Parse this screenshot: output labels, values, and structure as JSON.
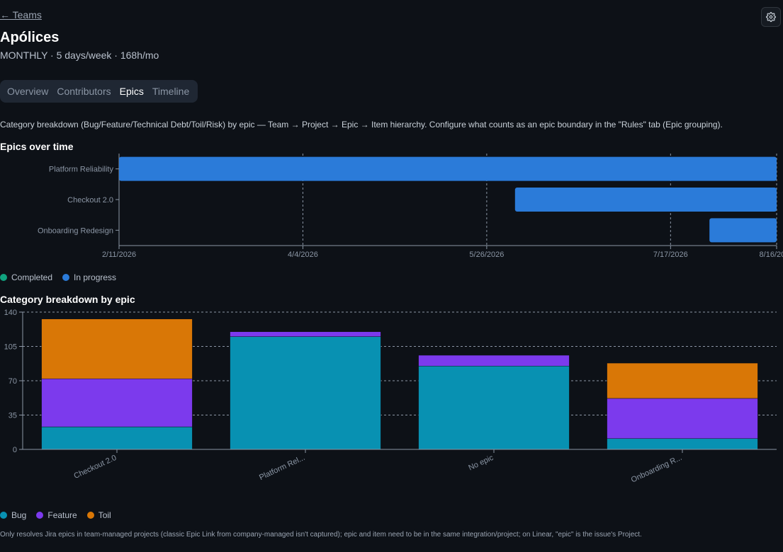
{
  "nav": {
    "back_label": "← Teams"
  },
  "header": {
    "title": "Apólices",
    "subtitle": "MONTHLY · 5 days/week · 168h/mo"
  },
  "tabs": [
    {
      "label": "Overview",
      "active": false
    },
    {
      "label": "Contributors",
      "active": false
    },
    {
      "label": "Epics",
      "active": true
    },
    {
      "label": "Timeline",
      "active": false
    }
  ],
  "description": "Category breakdown (Bug/Feature/Technical Debt/Toil/Risk) by epic — Team → Project → Epic → Item hierarchy. Configure what counts as an epic boundary in the \"Rules\" tab (Epic grouping).",
  "timeline_section": {
    "title": "Epics over time"
  },
  "breakdown_section": {
    "title": "Category breakdown by epic"
  },
  "timeline_legend": [
    {
      "label": "Completed",
      "color": "#10a37f"
    },
    {
      "label": "In progress",
      "color": "#2b7bd9"
    }
  ],
  "breakdown_legend": [
    {
      "label": "Bug",
      "color": "#0891b2"
    },
    {
      "label": "Feature",
      "color": "#7c3aed"
    },
    {
      "label": "Toil",
      "color": "#d97706"
    }
  ],
  "footnote": "Only resolves Jira epics in team-managed projects (classic Epic Link from company-managed isn't captured); epic and item need to be in the same integration/project; on Linear, \"epic\" is the issue's Project.",
  "chart_data": [
    {
      "type": "gantt",
      "x_ticks": [
        "2/11/2026",
        "4/4/2026",
        "5/26/2026",
        "7/17/2026",
        "8/16/2026"
      ],
      "xlim": [
        "2026-02-11",
        "2026-08-16"
      ],
      "status_colors": {
        "In progress": "#2b7bd9",
        "Completed": "#10a37f"
      },
      "tasks": [
        {
          "name": "Platform Reliability",
          "start": "2026-02-11",
          "end": "2026-08-16",
          "status": "In progress"
        },
        {
          "name": "Checkout 2.0",
          "start": "2026-06-03",
          "end": "2026-08-16",
          "status": "In progress"
        },
        {
          "name": "Onboarding Redesign",
          "start": "2026-07-28",
          "end": "2026-08-16",
          "status": "In progress"
        }
      ],
      "grid": true
    },
    {
      "type": "bar",
      "stacked": true,
      "categories": [
        "Checkout 2.0",
        "Platform Rel...",
        "No epic",
        "Onboarding R..."
      ],
      "series": [
        {
          "name": "Bug",
          "color": "#0891b2",
          "values": [
            23,
            115,
            85,
            11
          ]
        },
        {
          "name": "Feature",
          "color": "#7c3aed",
          "values": [
            49,
            5,
            11,
            41
          ]
        },
        {
          "name": "Toil",
          "color": "#d97706",
          "values": [
            61,
            0,
            0,
            36
          ]
        }
      ],
      "y_ticks": [
        0,
        35,
        70,
        105,
        140
      ],
      "ylim": [
        0,
        140
      ],
      "grid": true
    }
  ]
}
